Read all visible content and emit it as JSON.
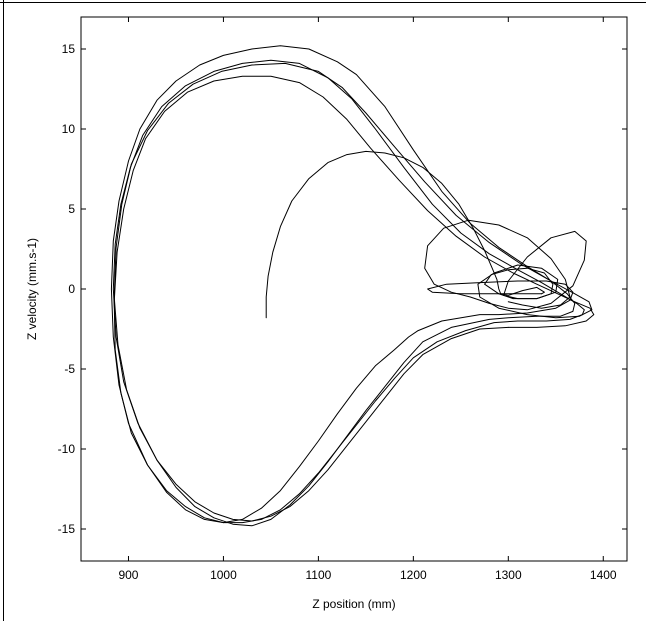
{
  "chart_data": {
    "type": "line",
    "title": "",
    "xlabel": "Z position (mm)",
    "ylabel": "Z velocity (mm.s-1)",
    "xlim": [
      850,
      1425
    ],
    "ylim": [
      -17,
      17
    ],
    "xticks": [
      900,
      1000,
      1100,
      1200,
      1300,
      1400
    ],
    "yticks": [
      15,
      10,
      5,
      0,
      -5,
      -10,
      -15
    ],
    "xtick_labels": [
      "900",
      "1000",
      "1100",
      "1200",
      "1300",
      "1400"
    ],
    "ytick_labels": [
      "15",
      "10",
      "5",
      "0",
      "-5",
      "-10",
      "-15"
    ],
    "grid": false,
    "legend": "none",
    "line_color": "#000000",
    "series": [
      {
        "x": [
          1045,
          1045,
          1047,
          1052,
          1060,
          1072,
          1090,
          1110,
          1130,
          1150,
          1170,
          1190,
          1210,
          1230,
          1248,
          1263,
          1275,
          1283,
          1288,
          1290,
          1292,
          1300,
          1315,
          1330,
          1338,
          1335
        ],
        "y": [
          -1.8,
          -0.5,
          0.8,
          2.3,
          3.9,
          5.5,
          6.9,
          7.9,
          8.4,
          8.6,
          8.5,
          8.2,
          7.6,
          6.6,
          5.3,
          3.8,
          2.4,
          1.3,
          0.6,
          0.0,
          -0.3,
          -0.4,
          -0.1,
          0.1,
          -0.2,
          -0.3
        ]
      },
      {
        "x": [
          1335,
          1330,
          1300,
          1250,
          1220,
          1215,
          1235,
          1270,
          1310,
          1340,
          1360,
          1368,
          1365,
          1350,
          1320,
          1290,
          1270,
          1230,
          1205,
          1195,
          1180,
          1160,
          1140,
          1120,
          1100,
          1080,
          1060,
          1040,
          1020,
          1000,
          980,
          960,
          940,
          920,
          900,
          890,
          884,
          882,
          884,
          890,
          900,
          912,
          930,
          950,
          975,
          1000,
          1030,
          1060,
          1090,
          1120,
          1140,
          1170,
          1200,
          1230,
          1260,
          1290,
          1320,
          1345,
          1362,
          1370,
          1368,
          1355,
          1330
        ],
        "y": [
          -0.3,
          -0.3,
          -0.3,
          -0.3,
          -0.2,
          0.0,
          0.3,
          0.4,
          0.5,
          0.5,
          0.3,
          -0.2,
          -0.7,
          -1.2,
          -1.5,
          -1.6,
          -1.6,
          -2.0,
          -2.6,
          -3.0,
          -3.8,
          -4.8,
          -6.2,
          -7.8,
          -9.5,
          -11.1,
          -12.6,
          -13.7,
          -14.4,
          -14.6,
          -14.4,
          -13.8,
          -12.7,
          -11.0,
          -8.4,
          -6.0,
          -3.0,
          0.0,
          3.0,
          5.5,
          8.0,
          10.0,
          11.8,
          13.0,
          14.0,
          14.6,
          15.0,
          15.2,
          15.0,
          14.2,
          13.4,
          11.4,
          8.7,
          6.1,
          4.1,
          2.6,
          1.4,
          0.5,
          -0.3,
          -0.9,
          -1.4,
          -1.7,
          -1.7
        ]
      },
      {
        "x": [
          1330,
          1300,
          1280,
          1240,
          1210,
          1190,
          1170,
          1150,
          1130,
          1110,
          1090,
          1070,
          1050,
          1030,
          1010,
          990,
          970,
          950,
          930,
          910,
          895,
          887,
          884,
          886,
          892,
          902,
          915,
          935,
          960,
          990,
          1020,
          1050,
          1080,
          1110,
          1135,
          1160,
          1190,
          1220,
          1250,
          1280,
          1310,
          1335,
          1355,
          1372,
          1380,
          1378,
          1365,
          1340,
          1310
        ],
        "y": [
          -1.7,
          -1.8,
          -1.9,
          -2.4,
          -3.3,
          -4.6,
          -6.1,
          -7.6,
          -9.2,
          -10.8,
          -12.3,
          -13.5,
          -14.4,
          -14.8,
          -14.7,
          -14.3,
          -13.6,
          -12.4,
          -10.7,
          -8.4,
          -5.8,
          -3.0,
          0.0,
          2.8,
          5.3,
          7.6,
          9.6,
          11.4,
          12.7,
          13.6,
          14.1,
          14.3,
          14.1,
          13.2,
          11.9,
          10.0,
          7.6,
          5.3,
          3.5,
          2.2,
          1.2,
          0.4,
          -0.3,
          -0.9,
          -1.3,
          -1.6,
          -1.9,
          -2.0,
          -2.0
        ]
      },
      {
        "x": [
          1310,
          1285,
          1255,
          1225,
          1200,
          1180,
          1160,
          1140,
          1120,
          1100,
          1080,
          1060,
          1040,
          1020,
          1000,
          980,
          960,
          940,
          920,
          903,
          892,
          886,
          885,
          888,
          895,
          905,
          918,
          938,
          962,
          990,
          1020,
          1050,
          1080,
          1105,
          1130,
          1155,
          1185,
          1215,
          1245,
          1275,
          1305,
          1330,
          1352,
          1370,
          1386,
          1390,
          1382,
          1360,
          1330,
          1300
        ],
        "y": [
          -2.0,
          -2.1,
          -2.6,
          -3.3,
          -4.3,
          -5.6,
          -7.0,
          -8.5,
          -10.0,
          -11.5,
          -12.8,
          -13.8,
          -14.4,
          -14.6,
          -14.6,
          -14.3,
          -13.6,
          -12.6,
          -11.0,
          -9.0,
          -6.5,
          -3.8,
          -0.8,
          2.3,
          5.0,
          7.4,
          9.4,
          11.1,
          12.3,
          13.0,
          13.3,
          13.3,
          12.9,
          12.0,
          10.6,
          8.8,
          6.8,
          4.9,
          3.3,
          2.0,
          1.0,
          0.3,
          -0.3,
          -0.8,
          -1.2,
          -1.6,
          -2.0,
          -2.3,
          -2.4,
          -2.4
        ]
      },
      {
        "x": [
          1300,
          1270,
          1240,
          1210,
          1190,
          1170,
          1150,
          1130,
          1110,
          1090,
          1070,
          1050,
          1030,
          1010,
          990,
          970,
          950,
          930,
          912,
          898,
          889,
          885,
          887,
          893,
          903,
          920,
          942,
          968,
          998,
          1030,
          1065,
          1100,
          1125,
          1150,
          1180,
          1212,
          1245,
          1280,
          1315,
          1345,
          1370,
          1385,
          1388,
          1375,
          1350,
          1320,
          1290,
          1270,
          1268,
          1285,
          1310,
          1335,
          1352,
          1350,
          1330,
          1305
        ],
        "y": [
          -2.4,
          -2.5,
          -3.1,
          -4.1,
          -5.3,
          -6.8,
          -8.3,
          -9.8,
          -11.3,
          -12.6,
          -13.6,
          -14.2,
          -14.5,
          -14.4,
          -14.0,
          -13.3,
          -12.2,
          -10.7,
          -8.7,
          -6.3,
          -3.5,
          -0.5,
          2.6,
          5.3,
          7.8,
          9.9,
          11.6,
          12.8,
          13.6,
          14.0,
          14.1,
          13.6,
          12.6,
          11.0,
          8.9,
          6.7,
          4.6,
          2.9,
          1.5,
          0.5,
          -0.3,
          -0.8,
          -1.3,
          -1.7,
          -1.8,
          -1.6,
          -1.2,
          -0.5,
          0.3,
          1.0,
          1.5,
          1.3,
          0.6,
          -0.2,
          -0.6,
          -0.6
        ]
      },
      {
        "x": [
          1305,
          1290,
          1275,
          1282,
          1300,
          1320,
          1338,
          1347,
          1345,
          1330,
          1310,
          1295
        ],
        "y": [
          -0.6,
          -0.3,
          0.3,
          0.9,
          1.2,
          1.3,
          1.0,
          0.3,
          -0.3,
          -0.6,
          -0.6,
          -0.4
        ]
      },
      {
        "x": [
          1295,
          1300,
          1320,
          1345,
          1370,
          1382,
          1380,
          1368,
          1345,
          1320,
          1300,
          1280,
          1260,
          1240,
          1222,
          1212,
          1215,
          1232,
          1258,
          1290,
          1320,
          1345,
          1360,
          1365,
          1355,
          1335,
          1315,
          1300
        ],
        "y": [
          -0.4,
          0.5,
          2.0,
          3.2,
          3.6,
          3.0,
          1.8,
          0.2,
          -0.9,
          -1.3,
          -1.2,
          -0.9,
          -0.5,
          -0.2,
          0.3,
          1.3,
          2.7,
          3.8,
          4.3,
          4.0,
          3.2,
          1.9,
          0.6,
          -0.5,
          -1.0,
          -1.2,
          -1.0,
          -0.8
        ]
      }
    ]
  }
}
